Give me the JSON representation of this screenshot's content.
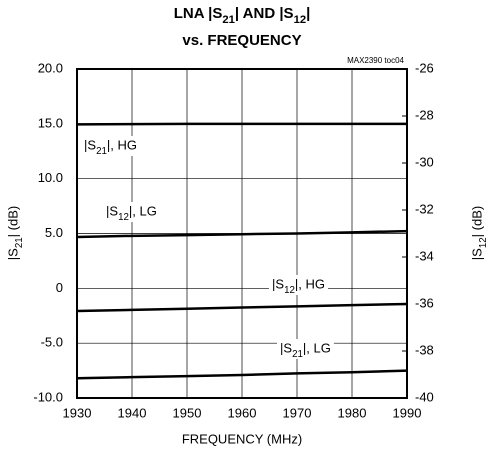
{
  "chart_data": {
    "type": "line",
    "title": [
      "LNA |S21| AND |S12|",
      "vs. FREQUENCY"
    ],
    "note": "MAX2390 toc04",
    "xlabel": "FREQUENCY (MHz)",
    "ylabel": "|S21| (dB)",
    "y2label": "|S12| (dB)",
    "x": [
      1930,
      1940,
      1950,
      1960,
      1970,
      1980,
      1990
    ],
    "xlim": [
      1930,
      1990
    ],
    "xticks": [
      1930,
      1940,
      1950,
      1960,
      1970,
      1980,
      1990
    ],
    "ylim": [
      -10,
      20
    ],
    "yticks": [
      {
        "value": -10,
        "label": "-10.0"
      },
      {
        "value": -5,
        "label": "-5.0"
      },
      0,
      {
        "value": 5,
        "label": "5.0"
      },
      {
        "value": 10,
        "label": "10.0"
      },
      {
        "value": 15,
        "label": "15.0"
      },
      {
        "value": 20,
        "label": "20.0"
      }
    ],
    "y2lim": [
      -40,
      -26
    ],
    "y2ticks": [
      -40,
      -38,
      -36,
      -34,
      -32,
      -30,
      -28,
      -26
    ],
    "grid": true,
    "series": [
      {
        "name": "|S21|, HG",
        "color": "#000000",
        "values": [
          14.95,
          14.97,
          15.0,
          15.0,
          15.0,
          15.0,
          15.0
        ]
      },
      {
        "name": "|S12|, LG",
        "color": "#000000",
        "axis": "y2",
        "values": [
          -33.15,
          -33.1,
          -33.07,
          -33.03,
          -33.0,
          -32.95,
          -32.9
        ]
      },
      {
        "name": "|S12|, HG",
        "color": "#000000",
        "axis": "y2",
        "values": [
          -36.3,
          -36.25,
          -36.2,
          -36.15,
          -36.1,
          -36.05,
          -36.0
        ]
      },
      {
        "name": "|S21|, LG",
        "color": "#000000",
        "values": [
          -8.2,
          -8.1,
          -8.0,
          -7.9,
          -7.75,
          -7.65,
          -7.5
        ]
      }
    ]
  }
}
